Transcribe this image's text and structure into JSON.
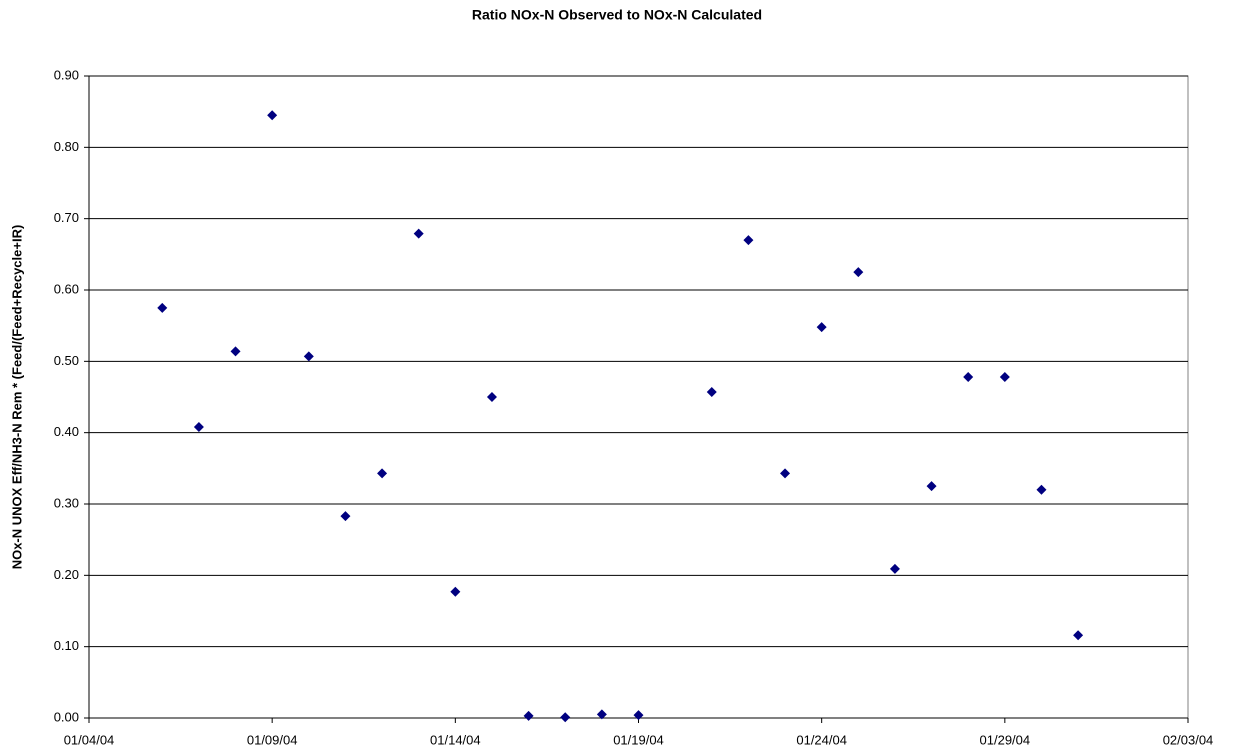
{
  "chart_data": {
    "type": "scatter",
    "title": "Ratio NOx-N Observed to NOx-N Calculated",
    "y_label": "NOx-N UNOX Eff/NH3-N Rem * (Feed/(Feed+Recycle+IR)",
    "x": [
      "01/06/04",
      "01/07/04",
      "01/08/04",
      "01/09/04",
      "01/10/04",
      "01/11/04",
      "01/12/04",
      "01/13/04",
      "01/14/04",
      "01/15/04",
      "01/16/04",
      "01/17/04",
      "01/18/04",
      "01/19/04",
      "01/21/04",
      "01/22/04",
      "01/23/04",
      "01/24/04",
      "01/25/04",
      "01/26/04",
      "01/27/04",
      "01/28/04",
      "01/29/04",
      "01/30/04",
      "01/31/04"
    ],
    "values": [
      0.575,
      0.408,
      0.514,
      0.845,
      0.507,
      0.283,
      0.343,
      0.679,
      0.177,
      0.45,
      0.003,
      0.001,
      0.005,
      0.004,
      0.457,
      0.67,
      0.343,
      0.548,
      0.625,
      0.209,
      0.325,
      0.478,
      0.478,
      0.32,
      0.116
    ],
    "color": "#000080",
    "xlim": [
      "01/04/04",
      "02/03/04"
    ],
    "xticks": [
      "01/04/04",
      "01/09/04",
      "01/14/04",
      "01/19/04",
      "01/24/04",
      "01/29/04",
      "02/03/04"
    ],
    "ylim": [
      0,
      0.9
    ],
    "yticks": [
      {
        "value": 0,
        "label": "0.00"
      },
      {
        "value": 0.1,
        "label": "0.10"
      },
      {
        "value": 0.2,
        "label": "0.20"
      },
      {
        "value": 0.3,
        "label": "0.30"
      },
      {
        "value": 0.4,
        "label": "0.40"
      },
      {
        "value": 0.5,
        "label": "0.50"
      },
      {
        "value": 0.6,
        "label": "0.60"
      },
      {
        "value": 0.7,
        "label": "0.70"
      },
      {
        "value": 0.8,
        "label": "0.80"
      },
      {
        "value": 0.9,
        "label": "0.90"
      }
    ],
    "grid": true
  }
}
